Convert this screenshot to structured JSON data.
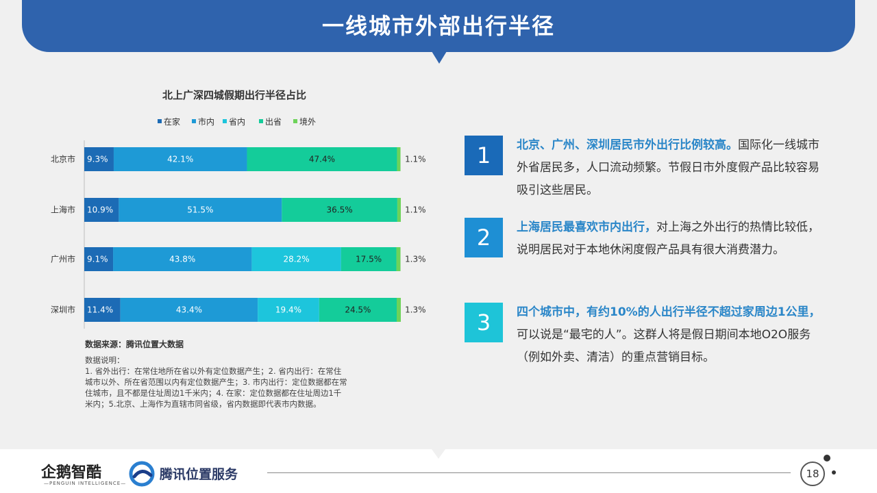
{
  "header": {
    "title": "一线城市外部出行半径"
  },
  "chart_data": {
    "type": "bar",
    "orientation": "horizontal",
    "stacked": true,
    "title": "北上广深四城假期出行半径占比",
    "legend_position": "top",
    "categories": [
      "北京市",
      "上海市",
      "广州市",
      "深圳市"
    ],
    "series": [
      {
        "name": "在家",
        "color": "#1c6bb5",
        "values": [
          9.3,
          10.9,
          9.1,
          11.4
        ],
        "labels": [
          "9.3%",
          "10.9%",
          "9.1%",
          "11.4%"
        ]
      },
      {
        "name": "市内",
        "color": "#1e9ad6",
        "values": [
          42.1,
          51.5,
          43.8,
          43.4
        ],
        "labels": [
          "42.1%",
          "51.5%",
          "43.8%",
          "43.4%"
        ]
      },
      {
        "name": "省内",
        "color": "#1dc5dc",
        "values": [
          0,
          0,
          28.2,
          19.4
        ],
        "labels": [
          "",
          "",
          "28.2%",
          "19.4%"
        ]
      },
      {
        "name": "出省",
        "color": "#14cc9a",
        "values": [
          47.4,
          36.5,
          17.5,
          24.5
        ],
        "labels": [
          "47.4%",
          "36.5%",
          "17.5%",
          "24.5%"
        ]
      },
      {
        "name": "境外",
        "color": "#6ed35a",
        "values": [
          1.1,
          1.1,
          1.3,
          1.3
        ],
        "labels": [
          "1.1%",
          "1.1%",
          "1.3%",
          "1.3%"
        ]
      }
    ],
    "xlim": [
      0,
      100
    ]
  },
  "source": "数据来源：腾讯位置大数据",
  "notes": [
    "数据说明：",
    "1. 省外出行：在常住地所在省以外有定位数据产生；2. 省内出行：在常住",
    "城市以外、所在省范围以内有定位数据产生；3. 市内出行：定位数据都在常",
    "住城市，且不都是住址周边1千米内；4. 在家：定位数据都在住址周边1千",
    "米内；5.北京、上海作为直辖市同省级，省内数据即代表市内数据。"
  ],
  "key_points": [
    {
      "number": "1",
      "color": "#1a6ab8",
      "highlight": "北京、广州、深圳居民市外出行比例较高。",
      "text": "国际化一线城市外省居民多，人口流动频繁。节假日市外度假产品比较容易吸引这些居民。"
    },
    {
      "number": "2",
      "color": "#1e8fd4",
      "highlight": "上海居民最喜欢市内出行，",
      "text": "对上海之外出行的热情比较低，说明居民对于本地休闲度假产品具有很大消费潜力。"
    },
    {
      "number": "3",
      "color": "#1ec4d8",
      "highlight": "四个城市中，有约10%的人出行半径不超过家周边1公里，",
      "text": "可以说是“最宅的人”。这群人将是假日期间本地O2O服务（例如外卖、清洁）的重点营销目标。"
    }
  ],
  "footer": {
    "logo_penguin": "企鹅智酷",
    "logo_penguin_sub": "—PENGUIN INTELLIGENCE—",
    "logo_tencent": "腾讯位置服务",
    "page_number": "18"
  }
}
